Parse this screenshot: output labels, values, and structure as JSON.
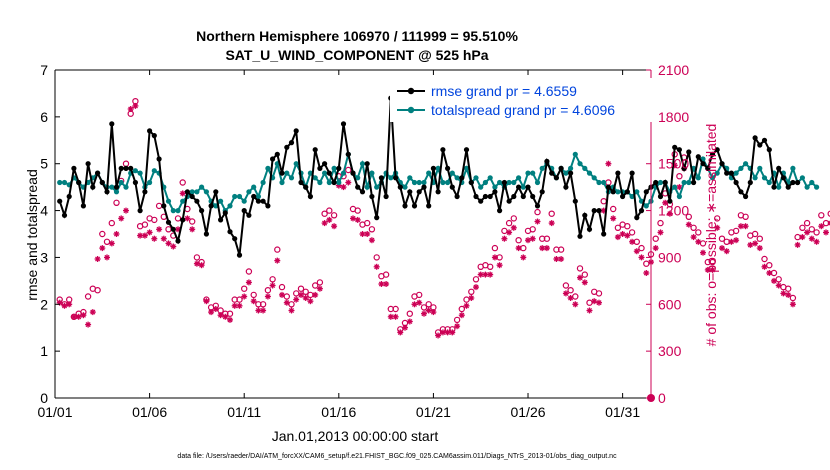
{
  "chart_data": {
    "type": "line",
    "title_line1": "Northern Hemisphere 106970 / 111999 = 95.510%",
    "title_line2": "SAT_U_WIND_COMPONENT @ 525 hPa",
    "xlabel": "Jan.01,2013 00:00:00 start",
    "ylabel_left": "rmse and totalspread",
    "ylabel_right": "# of obs: o=possible; ∗=assimilated",
    "footer": "data file: /Users/raeder/DAI/ATM_forcXX/CAM6_setup/f.e21.FHIST_BGC.f09_025.CAM6assim.011/Diags_NTrS_2013-01/obs_diag_output.nc",
    "xlim": [
      0,
      31.5
    ],
    "ylim_left": [
      0,
      7
    ],
    "ylim_right": [
      0,
      2100
    ],
    "x_ticks": [
      {
        "x": 0,
        "label": "01/01"
      },
      {
        "x": 5,
        "label": "01/06"
      },
      {
        "x": 10,
        "label": "01/11"
      },
      {
        "x": 15,
        "label": "01/16"
      },
      {
        "x": 20,
        "label": "01/21"
      },
      {
        "x": 25,
        "label": "01/26"
      },
      {
        "x": 30,
        "label": "01/31"
      }
    ],
    "y_ticks_left": [
      0,
      1,
      2,
      3,
      4,
      5,
      6,
      7
    ],
    "y_ticks_right": [
      0,
      300,
      600,
      900,
      1200,
      1500,
      1800,
      2100
    ],
    "colors": {
      "rmse": "#000000",
      "spread": "#008080",
      "obs": "#cc0055",
      "legend_text": "#0044dd"
    },
    "x_step_days": 0.25,
    "series": [
      {
        "name": "rmse grand pr = 4.6559",
        "values": [
          4.2,
          3.9,
          4.3,
          4.9,
          4.6,
          4.1,
          5.0,
          4.5,
          4.8,
          4.6,
          4.4,
          5.85,
          4.5,
          4.9,
          4.9,
          4.9,
          4.6,
          4.0,
          4.4,
          5.7,
          5.6,
          5.1,
          4.1,
          3.75,
          3.6,
          3.35,
          3.8,
          4.4,
          4.3,
          4.2,
          4.0,
          3.5,
          4.1,
          4.4,
          3.8,
          3.95,
          3.55,
          3.4,
          3.05,
          4.0,
          3.9,
          4.3,
          4.2,
          4.2,
          4.1,
          5.1,
          5.2,
          4.8,
          5.35,
          5.45,
          5.7,
          4.6,
          4.5,
          4.3,
          5.3,
          4.9,
          5.0,
          4.8,
          4.6,
          4.9,
          5.85,
          5.2,
          4.8,
          4.5,
          4.4,
          5.0,
          4.3,
          3.85,
          4.7,
          4.3,
          6.4,
          4.7,
          4.5,
          4.1,
          4.4,
          4.1,
          4.4,
          4.5,
          4.1,
          4.9,
          4.4,
          5.3,
          4.9,
          4.5,
          4.3,
          4.7,
          5.3,
          4.6,
          4.3,
          4.2,
          4.3,
          4.3,
          4.4,
          4.0,
          4.6,
          4.2,
          4.3,
          4.5,
          4.3,
          4.5,
          4.3,
          4.1,
          4.4,
          5.05,
          4.8,
          4.7,
          4.9,
          4.5,
          4.8,
          4.2,
          3.45,
          3.9,
          3.6,
          4.0,
          4.0,
          3.5,
          4.5,
          4.4,
          4.8,
          4.3,
          4.4,
          4.8,
          3.85,
          4.0,
          4.4,
          4.5,
          4.6,
          4.3,
          4.6,
          4.2,
          5.35,
          5.3,
          4.9,
          5.25,
          4.6,
          5.15,
          5.0,
          4.9,
          5.2,
          5.3,
          5.0,
          4.8,
          4.8,
          4.6,
          4.4,
          4.3,
          4.6,
          5.55,
          5.4,
          5.5,
          5.3,
          4.5,
          4.9,
          4.7,
          4.5,
          4.6,
          4.6
        ]
      },
      {
        "name": "totalspread grand pr = 4.6096",
        "values": [
          4.6,
          4.6,
          4.55,
          4.7,
          4.6,
          4.5,
          4.6,
          4.7,
          4.8,
          4.6,
          4.5,
          4.5,
          4.4,
          4.6,
          4.5,
          4.8,
          4.85,
          4.8,
          4.5,
          4.6,
          4.85,
          4.8,
          4.5,
          4.2,
          4.0,
          4.0,
          4.2,
          4.3,
          4.4,
          4.4,
          4.5,
          4.4,
          4.2,
          4.1,
          4.2,
          4.0,
          4.1,
          4.3,
          4.3,
          4.2,
          4.4,
          4.5,
          4.3,
          4.6,
          4.9,
          4.7,
          5.0,
          4.6,
          4.8,
          4.7,
          5.0,
          4.8,
          4.5,
          4.8,
          4.7,
          4.6,
          4.8,
          4.6,
          4.9,
          4.6,
          4.8,
          5.2,
          4.8,
          4.7,
          5.0,
          4.5,
          4.8,
          4.5,
          4.6,
          4.8,
          4.7,
          4.8,
          4.6,
          4.5,
          4.7,
          4.6,
          4.6,
          4.6,
          4.8,
          4.6,
          4.9,
          4.6,
          4.6,
          4.8,
          4.7,
          4.6,
          4.9,
          4.6,
          4.7,
          4.5,
          4.6,
          4.7,
          4.5,
          4.6,
          4.5,
          4.6,
          4.6,
          4.7,
          4.5,
          4.8,
          4.8,
          4.6,
          4.9,
          5.0,
          4.9,
          4.7,
          4.9,
          4.8,
          4.9,
          5.2,
          5.0,
          4.9,
          4.8,
          4.7,
          4.6,
          4.6,
          4.4,
          4.5,
          4.4,
          4.4,
          4.4,
          4.3,
          4.4,
          4.2,
          4.1,
          4.2,
          4.5,
          4.6,
          4.6,
          4.4,
          4.5,
          4.3,
          4.6,
          4.6,
          4.9,
          4.7,
          5.1,
          4.9,
          4.7,
          4.8,
          5.0,
          4.9,
          4.7,
          4.8,
          4.9,
          5.0,
          4.9,
          4.7,
          4.9,
          4.7,
          4.6,
          4.8,
          4.5,
          4.8,
          4.6,
          4.9,
          4.6,
          4.7,
          4.5,
          4.6,
          4.5
        ]
      },
      {
        "name": "# of obs possible",
        "values": [
          630,
          600,
          630,
          520,
          540,
          550,
          650,
          700,
          690,
          1050,
          1000,
          1120,
          1250,
          1390,
          1500,
          1820,
          1900,
          1100,
          1110,
          1150,
          1140,
          1230,
          1160,
          1080,
          1040,
          1150,
          1380,
          1210,
          1130,
          900,
          870,
          630,
          580,
          590,
          560,
          540,
          540,
          630,
          630,
          700,
          810,
          660,
          600,
          600,
          690,
          760,
          950,
          710,
          650,
          600,
          670,
          700,
          680,
          660,
          720,
          740,
          1180,
          1200,
          1170,
          1420,
          1420,
          1460,
          1210,
          1200,
          1110,
          1120,
          1080,
          900,
          780,
          790,
          570,
          570,
          440,
          480,
          540,
          650,
          660,
          580,
          600,
          580,
          420,
          440,
          440,
          440,
          500,
          570,
          630,
          680,
          760,
          840,
          850,
          840,
          960,
          900,
          1070,
          1120,
          1150,
          1010,
          960,
          1070,
          1080,
          1190,
          1020,
          1020,
          1180,
          950,
          950,
          720,
          690,
          650,
          830,
          790,
          610,
          680,
          670,
          1260,
          1380,
          1210,
          1090,
          1110,
          1100,
          1060,
          1000,
          960,
          860,
          920,
          1020,
          1120,
          1310,
          1240,
          1560,
          1420,
          1540,
          1160,
          1090,
          1060,
          990,
          870,
          870,
          1150,
          1020,
          1000,
          1060,
          1070,
          1170,
          1160,
          1040,
          1050,
          1020,
          890,
          850,
          800,
          760,
          710,
          700,
          640,
          1030,
          1090,
          1120,
          1080,
          1060,
          1170,
          1120,
          1180,
          1120
        ]
      },
      {
        "name": "# of obs assimilated",
        "values": [
          610,
          590,
          600,
          520,
          520,
          530,
          470,
          550,
          890,
          960,
          900,
          990,
          1050,
          1150,
          1200,
          1850,
          1870,
          1040,
          1040,
          1060,
          1020,
          1080,
          1020,
          990,
          970,
          1080,
          1310,
          1150,
          1080,
          860,
          850,
          620,
          550,
          570,
          530,
          520,
          500,
          590,
          590,
          650,
          740,
          620,
          560,
          560,
          650,
          720,
          880,
          660,
          610,
          560,
          630,
          660,
          640,
          620,
          660,
          700,
          1120,
          1140,
          1100,
          1360,
          1350,
          1380,
          1150,
          1140,
          1050,
          1050,
          1010,
          840,
          730,
          730,
          520,
          520,
          420,
          450,
          490,
          600,
          610,
          540,
          560,
          550,
          400,
          420,
          420,
          420,
          460,
          530,
          590,
          640,
          710,
          790,
          790,
          790,
          900,
          850,
          1020,
          1060,
          1090,
          960,
          900,
          1010,
          1020,
          1130,
          960,
          960,
          1120,
          890,
          890,
          670,
          640,
          600,
          770,
          740,
          560,
          620,
          610,
          1200,
          1500,
          1150,
          1030,
          1050,
          1040,
          1000,
          940,
          900,
          800,
          870,
          960,
          1060,
          1250,
          1180,
          1490,
          1350,
          1470,
          1110,
          1030,
          1000,
          930,
          820,
          820,
          1090,
          960,
          940,
          1000,
          1010,
          1100,
          1100,
          980,
          990,
          960,
          840,
          800,
          750,
          720,
          670,
          660,
          600,
          980,
          1030,
          1060,
          1020,
          1000,
          1100,
          1060,
          1120,
          1060
        ]
      }
    ],
    "end_obs_marker": {
      "x": 31.5,
      "value": 0
    }
  }
}
